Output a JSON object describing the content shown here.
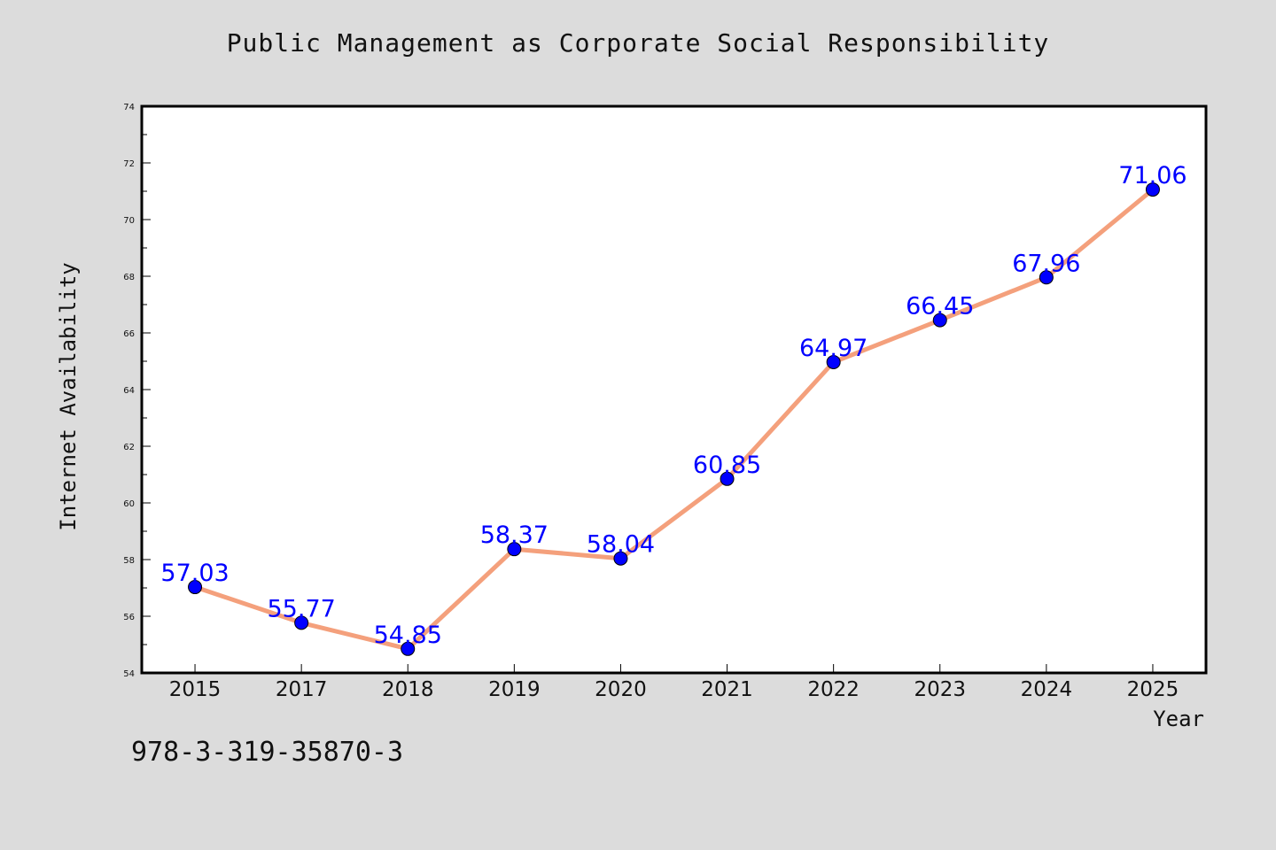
{
  "title": "Public Management as Corporate Social Responsibility",
  "footer_text": "978-3-319-35870-3",
  "colors": {
    "background": "#dcdcdc",
    "plot_background": "#ffffff",
    "line": "#f4a07c",
    "marker": "#0000ff",
    "data_label": "#0000ff",
    "axis": "#000000"
  },
  "chart_data": {
    "type": "line",
    "title": "Public Management as Corporate Social Responsibility",
    "xlabel": "Year",
    "ylabel": "Internet Availability",
    "categories": [
      "2015",
      "2017",
      "2018",
      "2019",
      "2020",
      "2021",
      "2022",
      "2023",
      "2024",
      "2025"
    ],
    "series": [
      {
        "values": [
          57.03,
          55.77,
          54.85,
          58.37,
          58.04,
          60.85,
          64.97,
          66.45,
          67.96,
          71.06
        ],
        "labels": [
          "57.03",
          "55.77",
          "54.85",
          "58.37",
          "58.04",
          "60.85",
          "64.97",
          "66.45",
          "67.96",
          "71.06"
        ]
      }
    ],
    "ylim": [
      54,
      74
    ],
    "yticks": [
      54,
      56,
      58,
      60,
      62,
      64,
      66,
      68,
      70,
      72,
      74
    ],
    "y_minor_step": 1,
    "grid": false,
    "legend": "none"
  }
}
